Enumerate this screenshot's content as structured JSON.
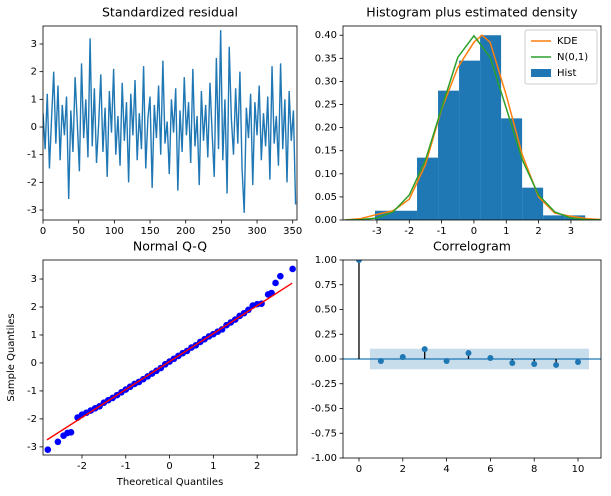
{
  "chart_data": [
    {
      "type": "line",
      "title": "Standardized residual",
      "color": "#1f77b4",
      "x": [
        0,
        3,
        6,
        9,
        12,
        15,
        18,
        21,
        24,
        27,
        30,
        33,
        36,
        39,
        42,
        45,
        48,
        51,
        54,
        57,
        60,
        63,
        66,
        69,
        72,
        75,
        78,
        81,
        84,
        87,
        90,
        93,
        96,
        99,
        102,
        105,
        108,
        111,
        114,
        117,
        120,
        123,
        126,
        129,
        132,
        135,
        138,
        141,
        144,
        147,
        150,
        153,
        156,
        159,
        162,
        165,
        168,
        171,
        174,
        177,
        180,
        183,
        186,
        189,
        192,
        195,
        198,
        201,
        204,
        207,
        210,
        213,
        216,
        219,
        222,
        225,
        228,
        231,
        234,
        237,
        240,
        243,
        246,
        249,
        252,
        255,
        258,
        261,
        264,
        267,
        270,
        273,
        276,
        279,
        282,
        285,
        288,
        291,
        294,
        297,
        300,
        303,
        306,
        309,
        312,
        315,
        318,
        321,
        324,
        327,
        330,
        333,
        336,
        339,
        342,
        345,
        348,
        351,
        354
      ],
      "values": [
        0.5,
        -0.8,
        1.2,
        -1.5,
        0.3,
        2.0,
        -0.6,
        1.5,
        -1.2,
        0.8,
        -0.3,
        1.1,
        -2.6,
        0.6,
        -0.9,
        1.8,
        0.2,
        -1.6,
        2.3,
        -0.4,
        1.0,
        -1.1,
        3.2,
        -0.7,
        1.4,
        -1.3,
        0.1,
        1.9,
        -0.9,
        0.7,
        -1.8,
        1.3,
        -0.2,
        2.1,
        -1.0,
        0.4,
        -1.4,
        1.6,
        -0.5,
        0.9,
        -2.0,
        1.2,
        -0.3,
        1.7,
        -1.2,
        0.5,
        -0.8,
        2.2,
        -1.5,
        0.3,
        1.1,
        -2.2,
        0.8,
        -0.4,
        1.5,
        -1.0,
        2.4,
        -0.6,
        0.2,
        -1.7,
        1.0,
        -0.2,
        1.4,
        -2.3,
        0.6,
        -0.9,
        1.8,
        -0.3,
        0.9,
        -1.3,
        2.1,
        -0.7,
        0.4,
        -2.1,
        1.3,
        -0.5,
        0.8,
        -1.1,
        1.6,
        -0.2,
        -1.8,
        2.5,
        -0.8,
        3.5,
        -1.2,
        1.0,
        -2.4,
        2.9,
        0.3,
        -1.0,
        1.4,
        -0.6,
        2.0,
        -1.5,
        -3.1,
        0.7,
        -0.4,
        1.2,
        -2.1,
        0.9,
        -0.3,
        1.5,
        -1.2,
        0.5,
        -0.7,
        1.1,
        -1.9,
        2.2,
        -0.6,
        0.4,
        -1.4,
        2.3,
        -0.8,
        1.0,
        -2.0,
        1.3,
        -0.5,
        0.6,
        -2.8
      ],
      "xlim": [
        0,
        356
      ],
      "ylim": [
        -3.36,
        3.65
      ],
      "xticks": [
        0,
        50,
        100,
        150,
        200,
        250,
        300,
        350
      ],
      "yticks": [
        -3,
        -2,
        -1,
        0,
        1,
        2,
        3
      ]
    },
    {
      "type": "histogram",
      "title": "Histogram plus estimated density",
      "histogram": {
        "name": "Hist",
        "color": "#1f77b4",
        "bins": [
          -3.06,
          -2.41,
          -1.76,
          -1.11,
          -0.46,
          0.19,
          0.84,
          1.49,
          2.14,
          2.79,
          3.44
        ],
        "values": [
          0.02,
          0.02,
          0.135,
          0.28,
          0.345,
          0.4,
          0.22,
          0.07,
          0.01,
          0.01
        ]
      },
      "series": [
        {
          "name": "KDE",
          "color": "#ff7f0e",
          "x": [
            -4,
            -3.5,
            -3,
            -2.5,
            -2,
            -1.5,
            -1,
            -0.5,
            0,
            0.25,
            0.5,
            1,
            1.5,
            2,
            2.5,
            3,
            3.5,
            3.9
          ],
          "values": [
            0.0,
            0.003,
            0.012,
            0.02,
            0.045,
            0.12,
            0.24,
            0.33,
            0.385,
            0.4,
            0.385,
            0.27,
            0.14,
            0.05,
            0.015,
            0.008,
            0.003,
            0.001
          ]
        },
        {
          "name": "N(0,1)",
          "color": "#2ca02c",
          "x": [
            -4,
            -3.5,
            -3,
            -2.5,
            -2,
            -1.5,
            -1,
            -0.5,
            0,
            0.5,
            1,
            1.5,
            2,
            2.5,
            3,
            3.5,
            3.9
          ],
          "values": [
            0.0001,
            0.0009,
            0.0044,
            0.0175,
            0.054,
            0.1295,
            0.242,
            0.3521,
            0.3989,
            0.3521,
            0.242,
            0.1295,
            0.054,
            0.0175,
            0.0044,
            0.0009,
            0.0002
          ]
        }
      ],
      "legend": "upper right",
      "xlim": [
        -4.05,
        3.93
      ],
      "ylim": [
        0,
        0.42
      ],
      "xticks": [
        -3,
        -2,
        -1,
        0,
        1,
        2,
        3
      ],
      "yticks": [
        {
          "value": 0,
          "label": "0.00"
        },
        {
          "value": 0.05,
          "label": "0.05"
        },
        {
          "value": 0.1,
          "label": "0.10"
        },
        {
          "value": 0.15,
          "label": "0.15"
        },
        {
          "value": 0.2,
          "label": "0.20"
        },
        {
          "value": 0.25,
          "label": "0.25"
        },
        {
          "value": 0.3,
          "label": "0.30"
        },
        {
          "value": 0.35,
          "label": "0.35"
        },
        {
          "value": 0.4,
          "label": "0.40"
        }
      ]
    },
    {
      "type": "scatter",
      "title": "Normal Q-Q",
      "xlabel": "Theoretical Quantiles",
      "ylabel": "Sample Quantiles",
      "color": "#0000ff",
      "x": [
        -2.78,
        -2.55,
        -2.42,
        -2.33,
        -2.25,
        -2.1,
        -2.0,
        -1.9,
        -1.8,
        -1.7,
        -1.6,
        -1.5,
        -1.4,
        -1.3,
        -1.2,
        -1.1,
        -1.0,
        -0.9,
        -0.8,
        -0.7,
        -0.6,
        -0.5,
        -0.4,
        -0.3,
        -0.2,
        -0.1,
        0,
        0.1,
        0.2,
        0.3,
        0.4,
        0.5,
        0.6,
        0.7,
        0.8,
        0.9,
        1.0,
        1.1,
        1.2,
        1.3,
        1.4,
        1.5,
        1.6,
        1.7,
        1.8,
        1.9,
        2.0,
        2.1,
        2.25,
        2.33,
        2.42,
        2.53,
        2.81
      ],
      "values": [
        -3.1,
        -2.82,
        -2.6,
        -2.5,
        -2.48,
        -1.95,
        -1.85,
        -1.78,
        -1.7,
        -1.62,
        -1.55,
        -1.42,
        -1.33,
        -1.25,
        -1.15,
        -1.05,
        -0.95,
        -0.85,
        -0.75,
        -0.68,
        -0.58,
        -0.48,
        -0.38,
        -0.28,
        -0.18,
        -0.05,
        0.05,
        0.15,
        0.25,
        0.35,
        0.43,
        0.55,
        0.63,
        0.75,
        0.85,
        0.95,
        1.03,
        1.12,
        1.2,
        1.35,
        1.45,
        1.55,
        1.68,
        1.78,
        1.9,
        2.05,
        2.1,
        2.12,
        2.45,
        2.5,
        2.86,
        3.1,
        3.36
      ],
      "line": {
        "color": "#ff0000",
        "x": [
          -2.8,
          2.8
        ],
        "values": [
          -2.75,
          2.85
        ]
      },
      "xlim": [
        -2.89,
        2.91
      ],
      "ylim": [
        -3.29,
        3.68
      ],
      "xticks": [
        -2,
        -1,
        0,
        1,
        2
      ],
      "yticks": [
        -3,
        -2,
        -1,
        0,
        1,
        2,
        3
      ]
    },
    {
      "type": "stem",
      "title": "Correlogram",
      "color": "#1f77b4",
      "x": [
        0,
        1,
        2,
        3,
        4,
        5,
        6,
        7,
        8,
        9,
        10
      ],
      "values": [
        1.0,
        -0.02,
        0.02,
        0.1,
        -0.02,
        0.06,
        0.01,
        -0.04,
        -0.05,
        -0.06,
        -0.03
      ],
      "conf_band": 0.104,
      "conf_x": [
        0.5,
        10.5
      ],
      "xlim": [
        -0.73,
        11.05
      ],
      "ylim": [
        -1,
        1
      ],
      "xticks": [
        0,
        2,
        4,
        6,
        8,
        10
      ],
      "yticks": [
        {
          "value": -1,
          "label": "-1.00"
        },
        {
          "value": -0.75,
          "label": "-0.75"
        },
        {
          "value": -0.5,
          "label": "-0.50"
        },
        {
          "value": -0.25,
          "label": "-0.25"
        },
        {
          "value": 0,
          "label": "0.00"
        },
        {
          "value": 0.25,
          "label": "0.25"
        },
        {
          "value": 0.5,
          "label": "0.50"
        },
        {
          "value": 0.75,
          "label": "0.75"
        },
        {
          "value": 1,
          "label": "1.00"
        }
      ]
    }
  ]
}
